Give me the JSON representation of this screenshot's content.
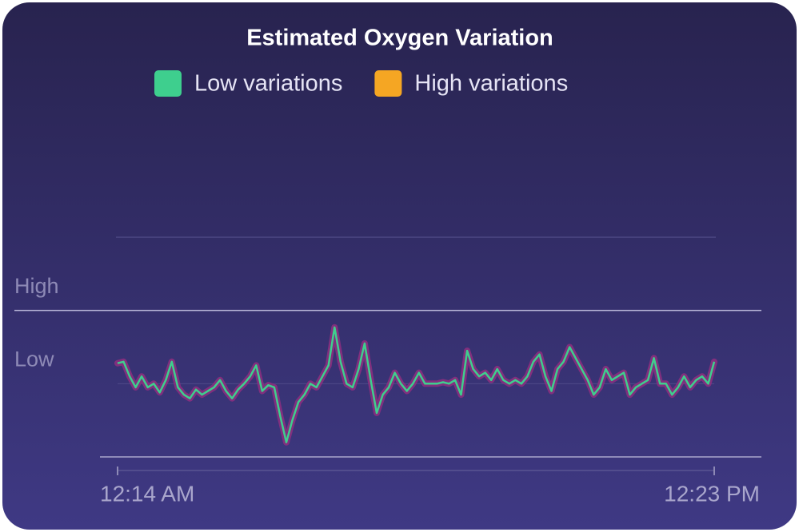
{
  "chart_data": {
    "type": "line",
    "title": "Estimated Oxygen Variation",
    "categories": [
      "12:14 AM",
      null,
      null,
      null,
      null,
      null,
      null,
      null,
      null,
      null,
      null,
      null,
      null,
      null,
      null,
      null,
      null,
      null,
      null,
      null,
      null,
      null,
      null,
      null,
      null,
      null,
      null,
      null,
      null,
      null,
      null,
      null,
      null,
      null,
      null,
      null,
      null,
      null,
      null,
      null,
      null,
      null,
      null,
      null,
      null,
      null,
      null,
      null,
      null,
      null,
      null,
      null,
      null,
      null,
      null,
      null,
      null,
      null,
      null,
      null,
      null,
      null,
      null,
      null,
      null,
      null,
      null,
      null,
      null,
      null,
      null,
      null,
      null,
      null,
      null,
      null,
      null,
      null,
      null,
      null,
      null,
      null,
      null,
      null,
      null,
      null,
      null,
      null,
      null,
      null,
      null,
      null,
      null,
      null,
      null,
      null,
      null,
      null,
      null,
      "12:23 PM"
    ],
    "series": [
      {
        "name": "Low variations",
        "color": "#3ecf8e",
        "values": [
          1.28,
          1.3,
          1.1,
          0.95,
          1.1,
          0.95,
          1.0,
          0.88,
          1.05,
          1.3,
          0.95,
          0.85,
          0.8,
          0.92,
          0.85,
          0.9,
          0.95,
          1.05,
          0.9,
          0.8,
          0.92,
          1.0,
          1.1,
          1.25,
          0.9,
          0.98,
          0.95,
          0.55,
          0.2,
          0.5,
          0.75,
          0.85,
          1.0,
          0.95,
          1.1,
          1.25,
          1.77,
          1.3,
          1.0,
          0.95,
          1.2,
          1.55,
          1.05,
          0.6,
          0.85,
          0.95,
          1.15,
          1.0,
          0.9,
          1.0,
          1.15,
          1.0,
          1.0,
          1.0,
          1.02,
          1.0,
          1.05,
          0.85,
          1.45,
          1.2,
          1.1,
          1.15,
          1.05,
          1.2,
          1.05,
          1.0,
          1.05,
          1.0,
          1.1,
          1.3,
          1.4,
          1.1,
          0.9,
          1.2,
          1.3,
          1.5,
          1.35,
          1.2,
          1.05,
          0.85,
          0.95,
          1.2,
          1.05,
          1.1,
          1.15,
          0.85,
          0.95,
          1.0,
          1.05,
          1.35,
          1.0,
          1.0,
          0.85,
          0.95,
          1.1,
          0.95,
          1.05,
          1.1,
          1.0,
          1.3
        ]
      },
      {
        "name": "High variations",
        "color": "#f5a623",
        "values": [
          null,
          null,
          null,
          null,
          null,
          null,
          null,
          null,
          null,
          null,
          null,
          null,
          null,
          null,
          null,
          null,
          null,
          null,
          null,
          null,
          null,
          null,
          null,
          null,
          null,
          null,
          null,
          null,
          null,
          null,
          null,
          null,
          null,
          null,
          null,
          null,
          null,
          null,
          null,
          null,
          null,
          null,
          null,
          null,
          null,
          null,
          null,
          null,
          null,
          null,
          null,
          null,
          null,
          null,
          null,
          null,
          null,
          null,
          null,
          null,
          null,
          null,
          null,
          null,
          null,
          null,
          null,
          null,
          null,
          null,
          null,
          null,
          null,
          null,
          null,
          null,
          null,
          null,
          null,
          null,
          null,
          null,
          null,
          null,
          null,
          null,
          null,
          null,
          null,
          null,
          null,
          null,
          null,
          null,
          null,
          null,
          null,
          null,
          null,
          null
        ]
      }
    ],
    "ylim": [
      0,
      3
    ],
    "yticks": [
      {
        "value": 1,
        "label": "Low"
      },
      {
        "value": 2,
        "label": "High"
      }
    ],
    "grid": true
  }
}
